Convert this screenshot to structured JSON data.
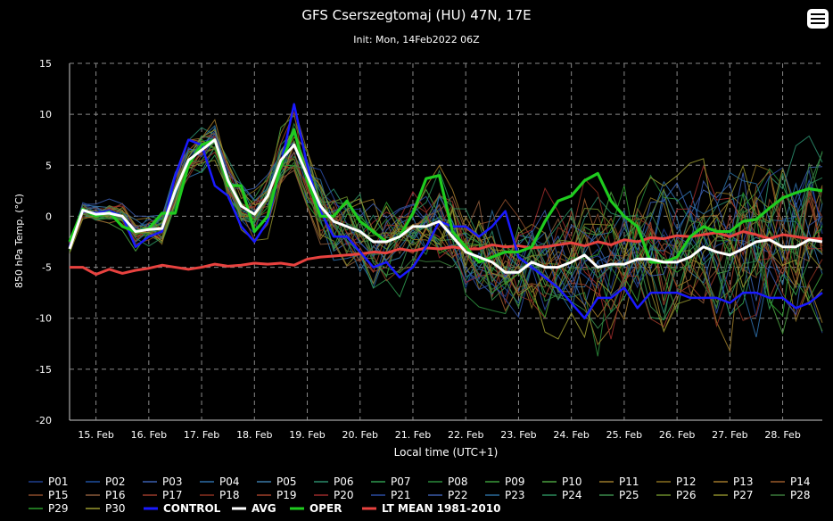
{
  "header": {
    "title": "GFS Cserszegtomaj (HU) 47N, 17E",
    "subtitle": "Init: Mon, 14Feb2022 06Z"
  },
  "chart_data": {
    "type": "line",
    "title": "GFS Cserszegtomaj (HU) 47N, 17E",
    "subtitle": "Init: Mon, 14Feb2022 06Z",
    "xlabel": "Local time (UTC+1)",
    "ylabel": "850 hPa Temp. (°C)",
    "ylim": [
      -20,
      15
    ],
    "yticks": [
      15,
      10,
      5,
      0,
      -5,
      -10,
      -15,
      -20
    ],
    "xlim": [
      0,
      57
    ],
    "x_step_hours": 6,
    "grid": true,
    "categories": [
      "15. Feb",
      "16. Feb",
      "17. Feb",
      "18. Feb",
      "19. Feb",
      "20. Feb",
      "21. Feb",
      "22. Feb",
      "23. Feb",
      "24. Feb",
      "25. Feb",
      "26. Feb",
      "27. Feb",
      "28. Feb"
    ],
    "category_x": [
      2,
      6,
      10,
      14,
      18,
      22,
      26,
      30,
      34,
      38,
      42,
      46,
      50,
      54
    ],
    "legend_position": "bottom",
    "main_series": [
      {
        "name": "CONTROL",
        "color": "#1a1aff",
        "values": [
          -3,
          0.5,
          0.3,
          0.5,
          0,
          -3,
          -2,
          -1.5,
          4,
          7.5,
          7,
          3,
          2,
          -1,
          -2.5,
          -0.5,
          5,
          11,
          5,
          0.5,
          -2,
          -2,
          -3.5,
          -5,
          -4.5,
          -6,
          -5,
          -3,
          -0.5,
          -1,
          -1,
          -2,
          -1,
          0.5,
          -4,
          -5,
          -6,
          -7,
          -8.5,
          -10,
          -8,
          -8,
          -7,
          -9,
          -7.5,
          -7.5,
          -7.5,
          -8,
          -8,
          -8,
          -8.5,
          -7.5,
          -7.5,
          -8,
          -8,
          -9,
          -8.5,
          -7.5
        ]
      },
      {
        "name": "AVG",
        "color": "#ffffff",
        "values": [
          -3.2,
          0.6,
          0.2,
          0.3,
          0,
          -1.5,
          -1.3,
          -1.2,
          2.5,
          5.5,
          6.5,
          7.5,
          3.5,
          1,
          0.2,
          2,
          5.5,
          7,
          4,
          1,
          -0.5,
          -1,
          -1.5,
          -2.5,
          -2.5,
          -2,
          -1,
          -1,
          -0.5,
          -2,
          -3.5,
          -4,
          -4.5,
          -5.5,
          -5.5,
          -4.5,
          -5,
          -5,
          -4.5,
          -3.8,
          -5,
          -4.7,
          -4.7,
          -4.2,
          -4.2,
          -4.5,
          -4.5,
          -4,
          -3,
          -3.5,
          -3.8,
          -3.2,
          -2.5,
          -2.3,
          -3,
          -3,
          -2.3,
          -2.5
        ]
      },
      {
        "name": "OPER",
        "color": "#1fcc1f",
        "values": [
          -2.5,
          0.7,
          0,
          0.4,
          -1,
          -1.5,
          -1.2,
          0.3,
          0.3,
          5,
          7,
          7.5,
          3,
          3,
          -1.5,
          0,
          5,
          8.5,
          3.5,
          0,
          0,
          1.5,
          -0.5,
          -1.5,
          -2.5,
          -2,
          0.3,
          3.7,
          4,
          -1.5,
          -3,
          -4.5,
          -4,
          -3.5,
          -3.5,
          -3,
          -0.5,
          1.5,
          2,
          3.5,
          4.2,
          1.5,
          0,
          -1,
          -4.5,
          -4.5,
          -4,
          -2,
          -1,
          -1.5,
          -1.5,
          -0.5,
          -0.3,
          0.8,
          1.8,
          2.3,
          2.7,
          2.5
        ]
      },
      {
        "name": "LT MEAN 1981-2010",
        "color": "#e8423f",
        "values": [
          -5,
          -5,
          -5.7,
          -5.2,
          -5.6,
          -5.3,
          -5.1,
          -4.8,
          -5,
          -5.2,
          -5,
          -4.7,
          -4.9,
          -4.8,
          -4.6,
          -4.7,
          -4.6,
          -4.8,
          -4.2,
          -4,
          -3.9,
          -3.8,
          -3.7,
          -3.5,
          -3.6,
          -3.2,
          -3.4,
          -3.1,
          -3.2,
          -3,
          -3.2,
          -3.2,
          -2.8,
          -3,
          -2.9,
          -3.1,
          -3,
          -2.8,
          -2.6,
          -2.9,
          -2.5,
          -2.8,
          -2.3,
          -2.5,
          -2.1,
          -2.2,
          -1.9,
          -2,
          -1.8,
          -1.6,
          -2,
          -1.5,
          -1.8,
          -2.2,
          -1.8,
          -2,
          -2.2,
          -2.2
        ]
      }
    ],
    "ensemble": {
      "note": "Thin ensemble member lines P01-P30, spread around the ensemble mean (AVG), growing with lead time",
      "members": [
        {
          "name": "P01",
          "color": "#1f3f8f"
        },
        {
          "name": "P02",
          "color": "#1f50a0"
        },
        {
          "name": "P03",
          "color": "#3a60b0"
        },
        {
          "name": "P04",
          "color": "#2e6ea8"
        },
        {
          "name": "P05",
          "color": "#3a7aa8"
        },
        {
          "name": "P06",
          "color": "#2a8a6a"
        },
        {
          "name": "P07",
          "color": "#2f9a50"
        },
        {
          "name": "P08",
          "color": "#2a8a3a"
        },
        {
          "name": "P09",
          "color": "#3a9a3a"
        },
        {
          "name": "P10",
          "color": "#4aa040"
        },
        {
          "name": "P11",
          "color": "#9a7a2a"
        },
        {
          "name": "P12",
          "color": "#8a7020"
        },
        {
          "name": "P13",
          "color": "#a0782a"
        },
        {
          "name": "P14",
          "color": "#9a5a2a"
        },
        {
          "name": "P15",
          "color": "#8a4a2a"
        },
        {
          "name": "P16",
          "color": "#8a5a3a"
        },
        {
          "name": "P17",
          "color": "#9a3a2a"
        },
        {
          "name": "P18",
          "color": "#8a3020"
        },
        {
          "name": "P19",
          "color": "#a0402a"
        },
        {
          "name": "P20",
          "color": "#9a2a2a"
        },
        {
          "name": "P21",
          "color": "#2a4aa0"
        },
        {
          "name": "P22",
          "color": "#3a5aa8"
        },
        {
          "name": "P23",
          "color": "#2a6a9a"
        },
        {
          "name": "P24",
          "color": "#2a8a5a"
        },
        {
          "name": "P25",
          "color": "#3a8a4a"
        },
        {
          "name": "P26",
          "color": "#6a8a2a"
        },
        {
          "name": "P27",
          "color": "#8a8a2a"
        },
        {
          "name": "P28",
          "color": "#3a7a3a"
        },
        {
          "name": "P29",
          "color": "#2a9a2a"
        },
        {
          "name": "P30",
          "color": "#9a9a30"
        }
      ]
    }
  }
}
